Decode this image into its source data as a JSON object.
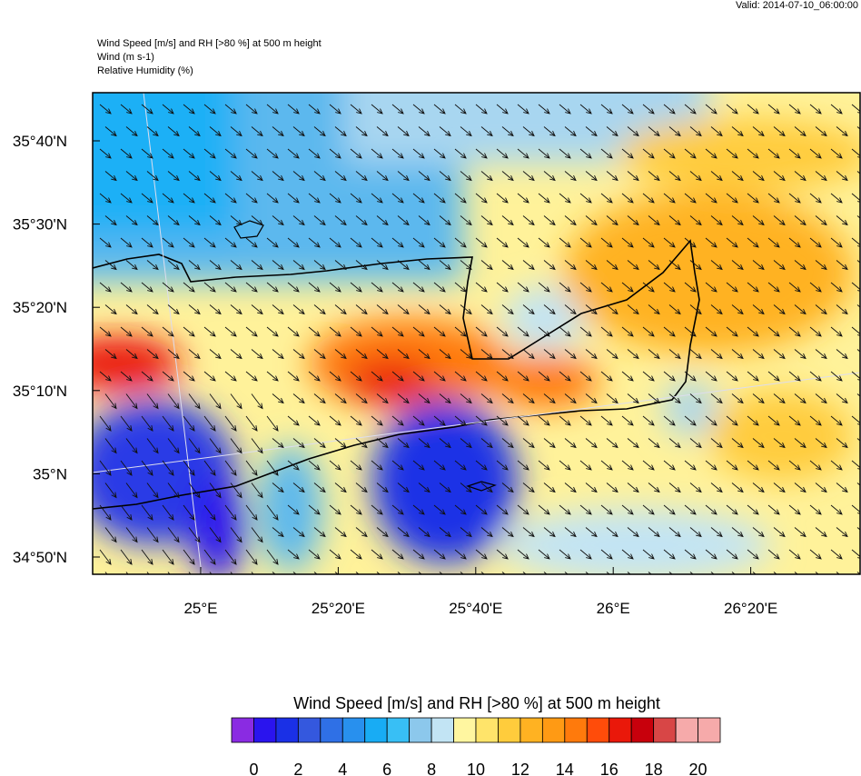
{
  "header": {
    "valid": "Valid: 2014-07-10_06:00:00",
    "title": "Wind Speed [m/s] and RH [>80 %] at 500 m height",
    "line2": "Wind   (m s-1)",
    "line3": "Relative Humidity   (%)"
  },
  "map": {
    "lat_labels": [
      "35°40'N",
      "35°30'N",
      "35°20'N",
      "35°10'N",
      "35°N",
      "34°50'N"
    ],
    "lon_labels": [
      "25°E",
      "25°20'E",
      "25°40'E",
      "26°E",
      "26°20'E"
    ]
  },
  "colorbar": {
    "title": "Wind Speed [m/s] and RH [>80 %] at 500 m height",
    "colors": [
      "#8a2be2",
      "#2a14ee",
      "#1a30e6",
      "#3458de",
      "#2f70e6",
      "#2890ee",
      "#18acf4",
      "#38bff5",
      "#8cc8ec",
      "#c2e4f4",
      "#fff6a0",
      "#ffe46a",
      "#ffcc3c",
      "#ffb222",
      "#ff9a14",
      "#ff7a0c",
      "#ff4c0a",
      "#ea180a",
      "#c8000c",
      "#d84646",
      "#f6aaaa"
    ],
    "ticks": [
      0,
      2,
      4,
      6,
      8,
      10,
      12,
      14,
      16,
      18,
      20
    ]
  }
}
